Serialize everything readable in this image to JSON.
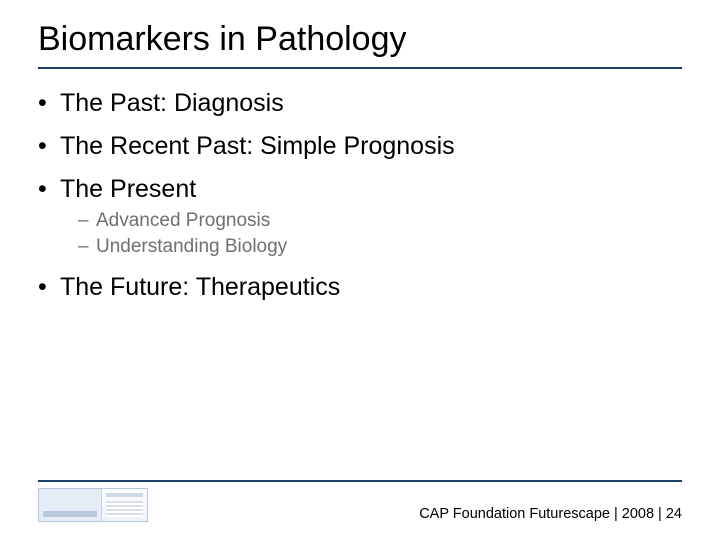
{
  "title": "Biomarkers in Pathology",
  "colors": {
    "rule": "#1b3f6a",
    "sub_bullet_text": "#6f6f6f",
    "text": "#000000",
    "background": "#ffffff"
  },
  "typography": {
    "title_fontsize": 34,
    "bullet_fontsize": 25,
    "sub_bullet_fontsize": 19,
    "footer_fontsize": 14.5,
    "font_family": "Arial"
  },
  "bullets": [
    {
      "label": "The Past:  Diagnosis",
      "children": []
    },
    {
      "label": "The Recent Past:  Simple Prognosis",
      "children": []
    },
    {
      "label": "The Present",
      "children": [
        {
          "label": "Advanced Prognosis"
        },
        {
          "label": "Understanding Biology"
        }
      ]
    },
    {
      "label": "The Future:  Therapeutics",
      "children": []
    }
  ],
  "footer": {
    "text": "CAP Foundation Futurescape | 2008 | 24"
  }
}
